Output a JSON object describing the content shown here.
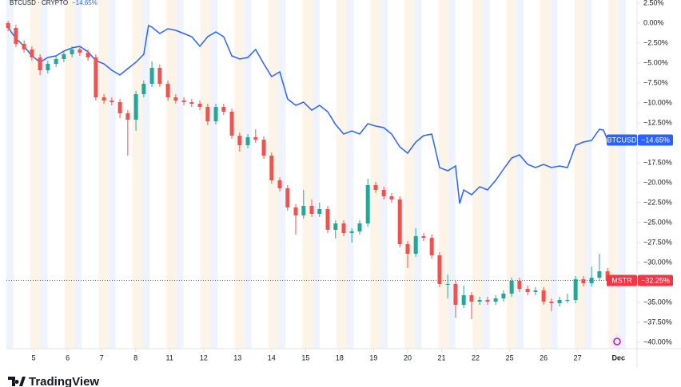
{
  "chart_data": {
    "type": "candlestick",
    "title": "BTCUSD · CRYPTO",
    "brand": "TradingView",
    "xlim": [
      0.2,
      18.7
    ],
    "xticks": [
      {
        "value": 1,
        "label": "5"
      },
      {
        "value": 2,
        "label": "6"
      },
      {
        "value": 3,
        "label": "7"
      },
      {
        "value": 4,
        "label": "8"
      },
      {
        "value": 5,
        "label": "11"
      },
      {
        "value": 6,
        "label": "12"
      },
      {
        "value": 7,
        "label": "13"
      },
      {
        "value": 8,
        "label": "14"
      },
      {
        "value": 9,
        "label": "15"
      },
      {
        "value": 10,
        "label": "18"
      },
      {
        "value": 11,
        "label": "19"
      },
      {
        "value": 12,
        "label": "20"
      },
      {
        "value": 13,
        "label": "21"
      },
      {
        "value": 14,
        "label": "22"
      },
      {
        "value": 15,
        "label": "25"
      },
      {
        "value": 16,
        "label": "26"
      },
      {
        "value": 17,
        "label": "27"
      },
      {
        "value": 18.2,
        "label": "Dec"
      }
    ],
    "ylim": [
      -40.8,
      2.9
    ],
    "yticks": [
      {
        "value": 2.5,
        "label": "2.50%"
      },
      {
        "value": 0,
        "label": "0.00%"
      },
      {
        "value": -2.5,
        "label": "−2.50%"
      },
      {
        "value": -5,
        "label": "−5.00%"
      },
      {
        "value": -7.5,
        "label": "−7.50%"
      },
      {
        "value": -10,
        "label": "−10.00%"
      },
      {
        "value": -12.5,
        "label": "−12.50%"
      },
      {
        "value": -15,
        "label": "−15.00%"
      },
      {
        "value": -17.5,
        "label": "−17.50%"
      },
      {
        "value": -20,
        "label": "−20.00%"
      },
      {
        "value": -22.5,
        "label": "−22.50%"
      },
      {
        "value": -25,
        "label": "−25.00%"
      },
      {
        "value": -27.5,
        "label": "−27.50%"
      },
      {
        "value": -30,
        "label": "−30.00%"
      },
      {
        "value": -32.5,
        "label": "−32.50%"
      },
      {
        "value": -35,
        "label": "−35.00%"
      },
      {
        "value": -37.5,
        "label": "−37.50%"
      },
      {
        "value": -40,
        "label": "−40.00%"
      }
    ],
    "grid": false,
    "series": [
      {
        "name": "BTCUSD",
        "type": "line",
        "color": "#2962ff",
        "tag_color": "#2962ff",
        "last_value_label": "−14.65%",
        "x": [
          0.2,
          0.34,
          0.48,
          0.72,
          0.95,
          1.19,
          1.42,
          1.66,
          1.89,
          2.13,
          2.36,
          2.6,
          2.83,
          3.07,
          3.3,
          3.54,
          3.77,
          4.01,
          4.24,
          4.38,
          4.48,
          4.71,
          4.95,
          5.18,
          5.42,
          5.65,
          5.89,
          6.12,
          6.36,
          6.59,
          6.83,
          7.06,
          7.3,
          7.53,
          7.77,
          8.0,
          8.24,
          8.47,
          8.71,
          8.94,
          9.18,
          9.41,
          9.65,
          9.88,
          10.12,
          10.36,
          10.59,
          10.83,
          11.06,
          11.3,
          11.53,
          11.77,
          12.0,
          12.24,
          12.47,
          12.71,
          12.94,
          13.18,
          13.41,
          13.53,
          13.65,
          13.88,
          14.12,
          14.35,
          14.59,
          14.82,
          15.06,
          15.29,
          15.53,
          15.76,
          16.0,
          16.23,
          16.47,
          16.7,
          16.94,
          17.17,
          17.41,
          17.64,
          17.76,
          17.88
        ],
        "values": [
          0,
          -1.1,
          -1.9,
          -2.9,
          -4.1,
          -4.9,
          -4.3,
          -4.1,
          -3.5,
          -3.1,
          -2.9,
          -3.6,
          -4.7,
          -5.1,
          -5.9,
          -6.5,
          -5.7,
          -4.9,
          -3.9,
          -0.3,
          -0.5,
          -1.3,
          -0.7,
          -0.9,
          -1.3,
          -1.7,
          -2.9,
          -1.7,
          -1.1,
          -1.7,
          -4.1,
          -4.5,
          -4.3,
          -3.3,
          -5.1,
          -6.7,
          -6.1,
          -9.5,
          -10.3,
          -9.9,
          -10.9,
          -10.3,
          -11.1,
          -12.7,
          -13.9,
          -13.5,
          -13.9,
          -12.6,
          -12.9,
          -13.1,
          -13.9,
          -15.5,
          -16.3,
          -14.9,
          -14.1,
          -13.9,
          -18.1,
          -18.5,
          -17.9,
          -22.6,
          -20.9,
          -21.5,
          -20.5,
          -20.9,
          -19.7,
          -18.3,
          -16.9,
          -16.5,
          -17.7,
          -18.1,
          -17.7,
          -18.1,
          -17.9,
          -18.1,
          -15.3,
          -14.9,
          -14.7,
          -13.3,
          -13.4,
          -14.65
        ]
      },
      {
        "name": "MSTR",
        "type": "candlestick",
        "up_color": "#26a69a",
        "down_color": "#ef5350",
        "tag_color": "#f23645",
        "last_value_label": "−32.25%",
        "x": [
          0.25,
          0.48,
          0.72,
          0.95,
          1.19,
          1.42,
          1.66,
          1.89,
          2.13,
          2.36,
          2.6,
          2.83,
          3.07,
          3.3,
          3.54,
          3.77,
          4.01,
          4.24,
          4.48,
          4.71,
          4.95,
          5.18,
          5.42,
          5.65,
          5.89,
          6.12,
          6.36,
          6.59,
          6.83,
          7.06,
          7.3,
          7.53,
          7.77,
          8.0,
          8.24,
          8.47,
          8.71,
          8.94,
          9.18,
          9.41,
          9.65,
          9.88,
          10.12,
          10.36,
          10.59,
          10.83,
          11.06,
          11.3,
          11.53,
          11.77,
          12.0,
          12.24,
          12.47,
          12.71,
          12.94,
          13.18,
          13.41,
          13.65,
          13.88,
          14.12,
          14.35,
          14.59,
          14.82,
          15.06,
          15.29,
          15.53,
          15.76,
          16.0,
          16.23,
          16.47,
          16.7,
          16.94,
          17.17,
          17.41,
          17.64,
          17.88
        ],
        "open": [
          0,
          -0.6,
          -2.6,
          -3.3,
          -4.3,
          -5.9,
          -5.1,
          -4.5,
          -3.9,
          -3.3,
          -3.7,
          -4.3,
          -9.3,
          -9.7,
          -9.9,
          -11.3,
          -12.1,
          -8.9,
          -7.6,
          -5.6,
          -7.6,
          -9.3,
          -9.7,
          -9.9,
          -10.1,
          -10.5,
          -12.3,
          -10.5,
          -11.1,
          -14.1,
          -15.3,
          -14.3,
          -14.6,
          -16.6,
          -19.7,
          -20.7,
          -23.1,
          -24.1,
          -22.9,
          -23.9,
          -23.3,
          -25.9,
          -25.1,
          -26.3,
          -26.1,
          -25.1,
          -20.3,
          -20.9,
          -21.7,
          -22.1,
          -27.7,
          -28.9,
          -26.7,
          -26.9,
          -29.1,
          -32.7,
          -32.7,
          -35.3,
          -34.1,
          -34.9,
          -34.7,
          -34.9,
          -34.5,
          -33.9,
          -32.3,
          -33.3,
          -33.7,
          -33.5,
          -34.9,
          -35.1,
          -34.7,
          -34.7,
          -32.1,
          -32.6,
          -31.9,
          -31.1
        ],
        "high": [
          0.3,
          -0.2,
          -2.2,
          -2.9,
          -3.9,
          -4.7,
          -4.1,
          -3.5,
          -2.9,
          -2.9,
          -3.3,
          -3.9,
          -8.9,
          -9.3,
          -9.5,
          -10.9,
          -8.5,
          -7.2,
          -4.8,
          -5.2,
          -7.2,
          -8.9,
          -9.3,
          -9.5,
          -9.7,
          -10.1,
          -10.1,
          -10.1,
          -10.7,
          -13.7,
          -13.9,
          -13.3,
          -14.2,
          -16.2,
          -19.3,
          -20.3,
          -22.7,
          -20.9,
          -22.1,
          -22.5,
          -22.9,
          -24.7,
          -24.7,
          -25.7,
          -24.7,
          -19.5,
          -19.9,
          -20.5,
          -21.3,
          -21.7,
          -27.3,
          -25.7,
          -26.3,
          -26.5,
          -28.7,
          -31.5,
          -32.3,
          -32.9,
          -33.7,
          -34.3,
          -34.3,
          -34.1,
          -33.5,
          -31.9,
          -31.9,
          -32.9,
          -33.1,
          -33.1,
          -34.5,
          -34.3,
          -33.9,
          -31.7,
          -31.7,
          -30.5,
          -28.9,
          -30.7
        ],
        "low": [
          -1.0,
          -3.0,
          -3.7,
          -4.7,
          -6.5,
          -6.3,
          -5.5,
          -4.9,
          -4.3,
          -4.1,
          -4.7,
          -9.7,
          -10.1,
          -10.3,
          -11.9,
          -16.6,
          -13.5,
          -9.3,
          -8.0,
          -8.0,
          -9.7,
          -10.1,
          -10.3,
          -10.5,
          -10.9,
          -12.8,
          -12.7,
          -11.5,
          -14.5,
          -16.1,
          -15.7,
          -15.0,
          -17.0,
          -20.1,
          -21.1,
          -23.5,
          -26.5,
          -24.5,
          -24.3,
          -24.3,
          -26.3,
          -27.0,
          -26.7,
          -27.5,
          -26.5,
          -25.5,
          -21.3,
          -22.1,
          -22.5,
          -28.1,
          -30.7,
          -29.3,
          -27.3,
          -29.5,
          -33.1,
          -34.5,
          -36.9,
          -35.7,
          -37.1,
          -35.3,
          -35.3,
          -35.3,
          -34.9,
          -34.3,
          -33.7,
          -34.1,
          -34.1,
          -35.3,
          -36.1,
          -35.5,
          -35.1,
          -35.1,
          -33.0,
          -33.0,
          -32.3,
          -33.0
        ],
        "close": [
          -0.6,
          -2.6,
          -3.3,
          -4.3,
          -5.9,
          -5.1,
          -4.5,
          -3.9,
          -3.3,
          -3.7,
          -4.3,
          -9.3,
          -9.7,
          -9.9,
          -11.3,
          -12.1,
          -8.9,
          -7.6,
          -5.6,
          -7.6,
          -9.3,
          -9.7,
          -9.9,
          -10.1,
          -10.5,
          -12.3,
          -10.5,
          -11.1,
          -14.1,
          -15.3,
          -14.3,
          -14.6,
          -16.6,
          -19.7,
          -20.7,
          -23.1,
          -24.1,
          -22.9,
          -23.9,
          -23.3,
          -25.9,
          -25.1,
          -26.3,
          -26.1,
          -25.1,
          -20.3,
          -20.9,
          -21.7,
          -22.1,
          -27.7,
          -28.9,
          -26.7,
          -26.9,
          -29.1,
          -32.7,
          -32.7,
          -35.3,
          -34.1,
          -34.9,
          -34.7,
          -34.9,
          -34.5,
          -33.9,
          -32.3,
          -33.3,
          -33.7,
          -33.5,
          -34.9,
          -35.1,
          -34.7,
          -34.7,
          -32.1,
          -32.6,
          -31.9,
          -31.1,
          -32.25
        ]
      }
    ]
  }
}
